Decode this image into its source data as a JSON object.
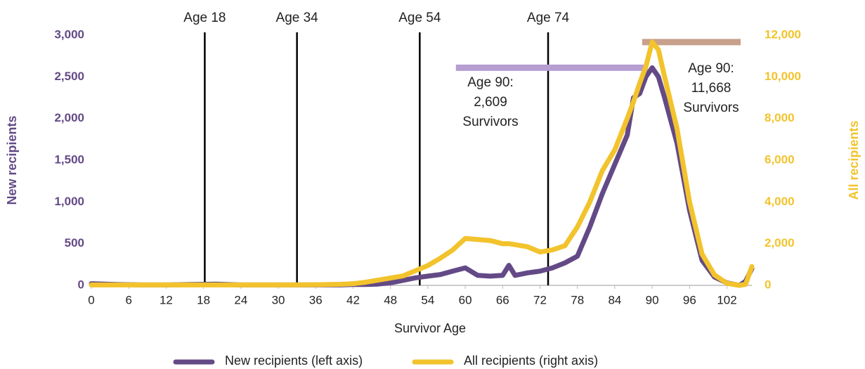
{
  "chart_data": {
    "type": "line",
    "xlabel": "Survivor Age",
    "ylabel": "New recipients",
    "y2label": "All recipients",
    "xlim": [
      0,
      106
    ],
    "xticks": [
      0,
      6,
      12,
      18,
      24,
      30,
      36,
      42,
      48,
      54,
      60,
      66,
      72,
      78,
      84,
      90,
      96,
      102
    ],
    "ylim": [
      0,
      3000
    ],
    "yticks": [
      0,
      500,
      {
        "value": 1000,
        "label": "1,000"
      },
      {
        "value": 1500,
        "label": "1,500"
      },
      {
        "value": 2000,
        "label": "2,000"
      },
      {
        "value": 2500,
        "label": "2,500"
      },
      {
        "value": 3000,
        "label": "3,000"
      }
    ],
    "y2lim": [
      0,
      12000
    ],
    "y2ticks": [
      0,
      {
        "value": 2000,
        "label": "2,000"
      },
      {
        "value": 4000,
        "label": "4,000"
      },
      {
        "value": 6000,
        "label": "6,000"
      },
      {
        "value": 8000,
        "label": "8,000"
      },
      {
        "value": 10000,
        "label": "10,000"
      },
      {
        "value": 12000,
        "label": "12,000"
      }
    ],
    "x": [
      0,
      4,
      8,
      12,
      16,
      20,
      24,
      28,
      32,
      36,
      40,
      42,
      44,
      46,
      48,
      50,
      52,
      54,
      56,
      58,
      60,
      62,
      64,
      66,
      67,
      68,
      70,
      72,
      74,
      76,
      78,
      80,
      82,
      84,
      86,
      87,
      88,
      89,
      90,
      91,
      92,
      94,
      96,
      98,
      100,
      102,
      104,
      105,
      106
    ],
    "series": [
      {
        "name": "New recipients (left axis)",
        "color": "#634a86",
        "axis": "y",
        "values": [
          20,
          10,
          5,
          5,
          10,
          15,
          5,
          5,
          5,
          5,
          5,
          10,
          10,
          15,
          30,
          60,
          90,
          110,
          130,
          170,
          210,
          120,
          110,
          120,
          240,
          120,
          150,
          170,
          210,
          270,
          350,
          700,
          1100,
          1450,
          1800,
          2250,
          2300,
          2500,
          2609,
          2500,
          2250,
          1700,
          900,
          300,
          100,
          30,
          0,
          50,
          200
        ]
      },
      {
        "name": "All recipients (right axis)",
        "color": "#f2c32c",
        "axis": "y2",
        "values": [
          20,
          20,
          20,
          20,
          20,
          20,
          20,
          20,
          20,
          30,
          50,
          80,
          150,
          250,
          350,
          450,
          700,
          950,
          1300,
          1700,
          2250,
          2200,
          2150,
          2000,
          2000,
          1950,
          1850,
          1600,
          1700,
          1900,
          2800,
          4000,
          5500,
          6500,
          8000,
          8800,
          9700,
          10500,
          11668,
          11300,
          10000,
          7500,
          4000,
          1500,
          500,
          100,
          0,
          50,
          900
        ]
      }
    ],
    "vlines": [
      {
        "x": 18.2,
        "label": "Age 18"
      },
      {
        "x": 33,
        "label": "Age 34"
      },
      {
        "x": 52.7,
        "label": "Age 54"
      },
      {
        "x": 73.3,
        "label": "Age 74"
      }
    ],
    "hbars": [
      {
        "x": [
          58.5,
          89.3
        ],
        "y": 2609,
        "axis": "y",
        "color": "#b69dd2"
      },
      {
        "x": [
          88.4,
          104.2
        ],
        "y": 11668,
        "axis": "y2",
        "color": "#c8a08c"
      }
    ],
    "notes": [
      {
        "lines": [
          "Age 90:",
          "2,609",
          "Survivors"
        ]
      },
      {
        "lines": [
          "Age 90:",
          "11,668",
          "Survivors"
        ]
      }
    ]
  }
}
